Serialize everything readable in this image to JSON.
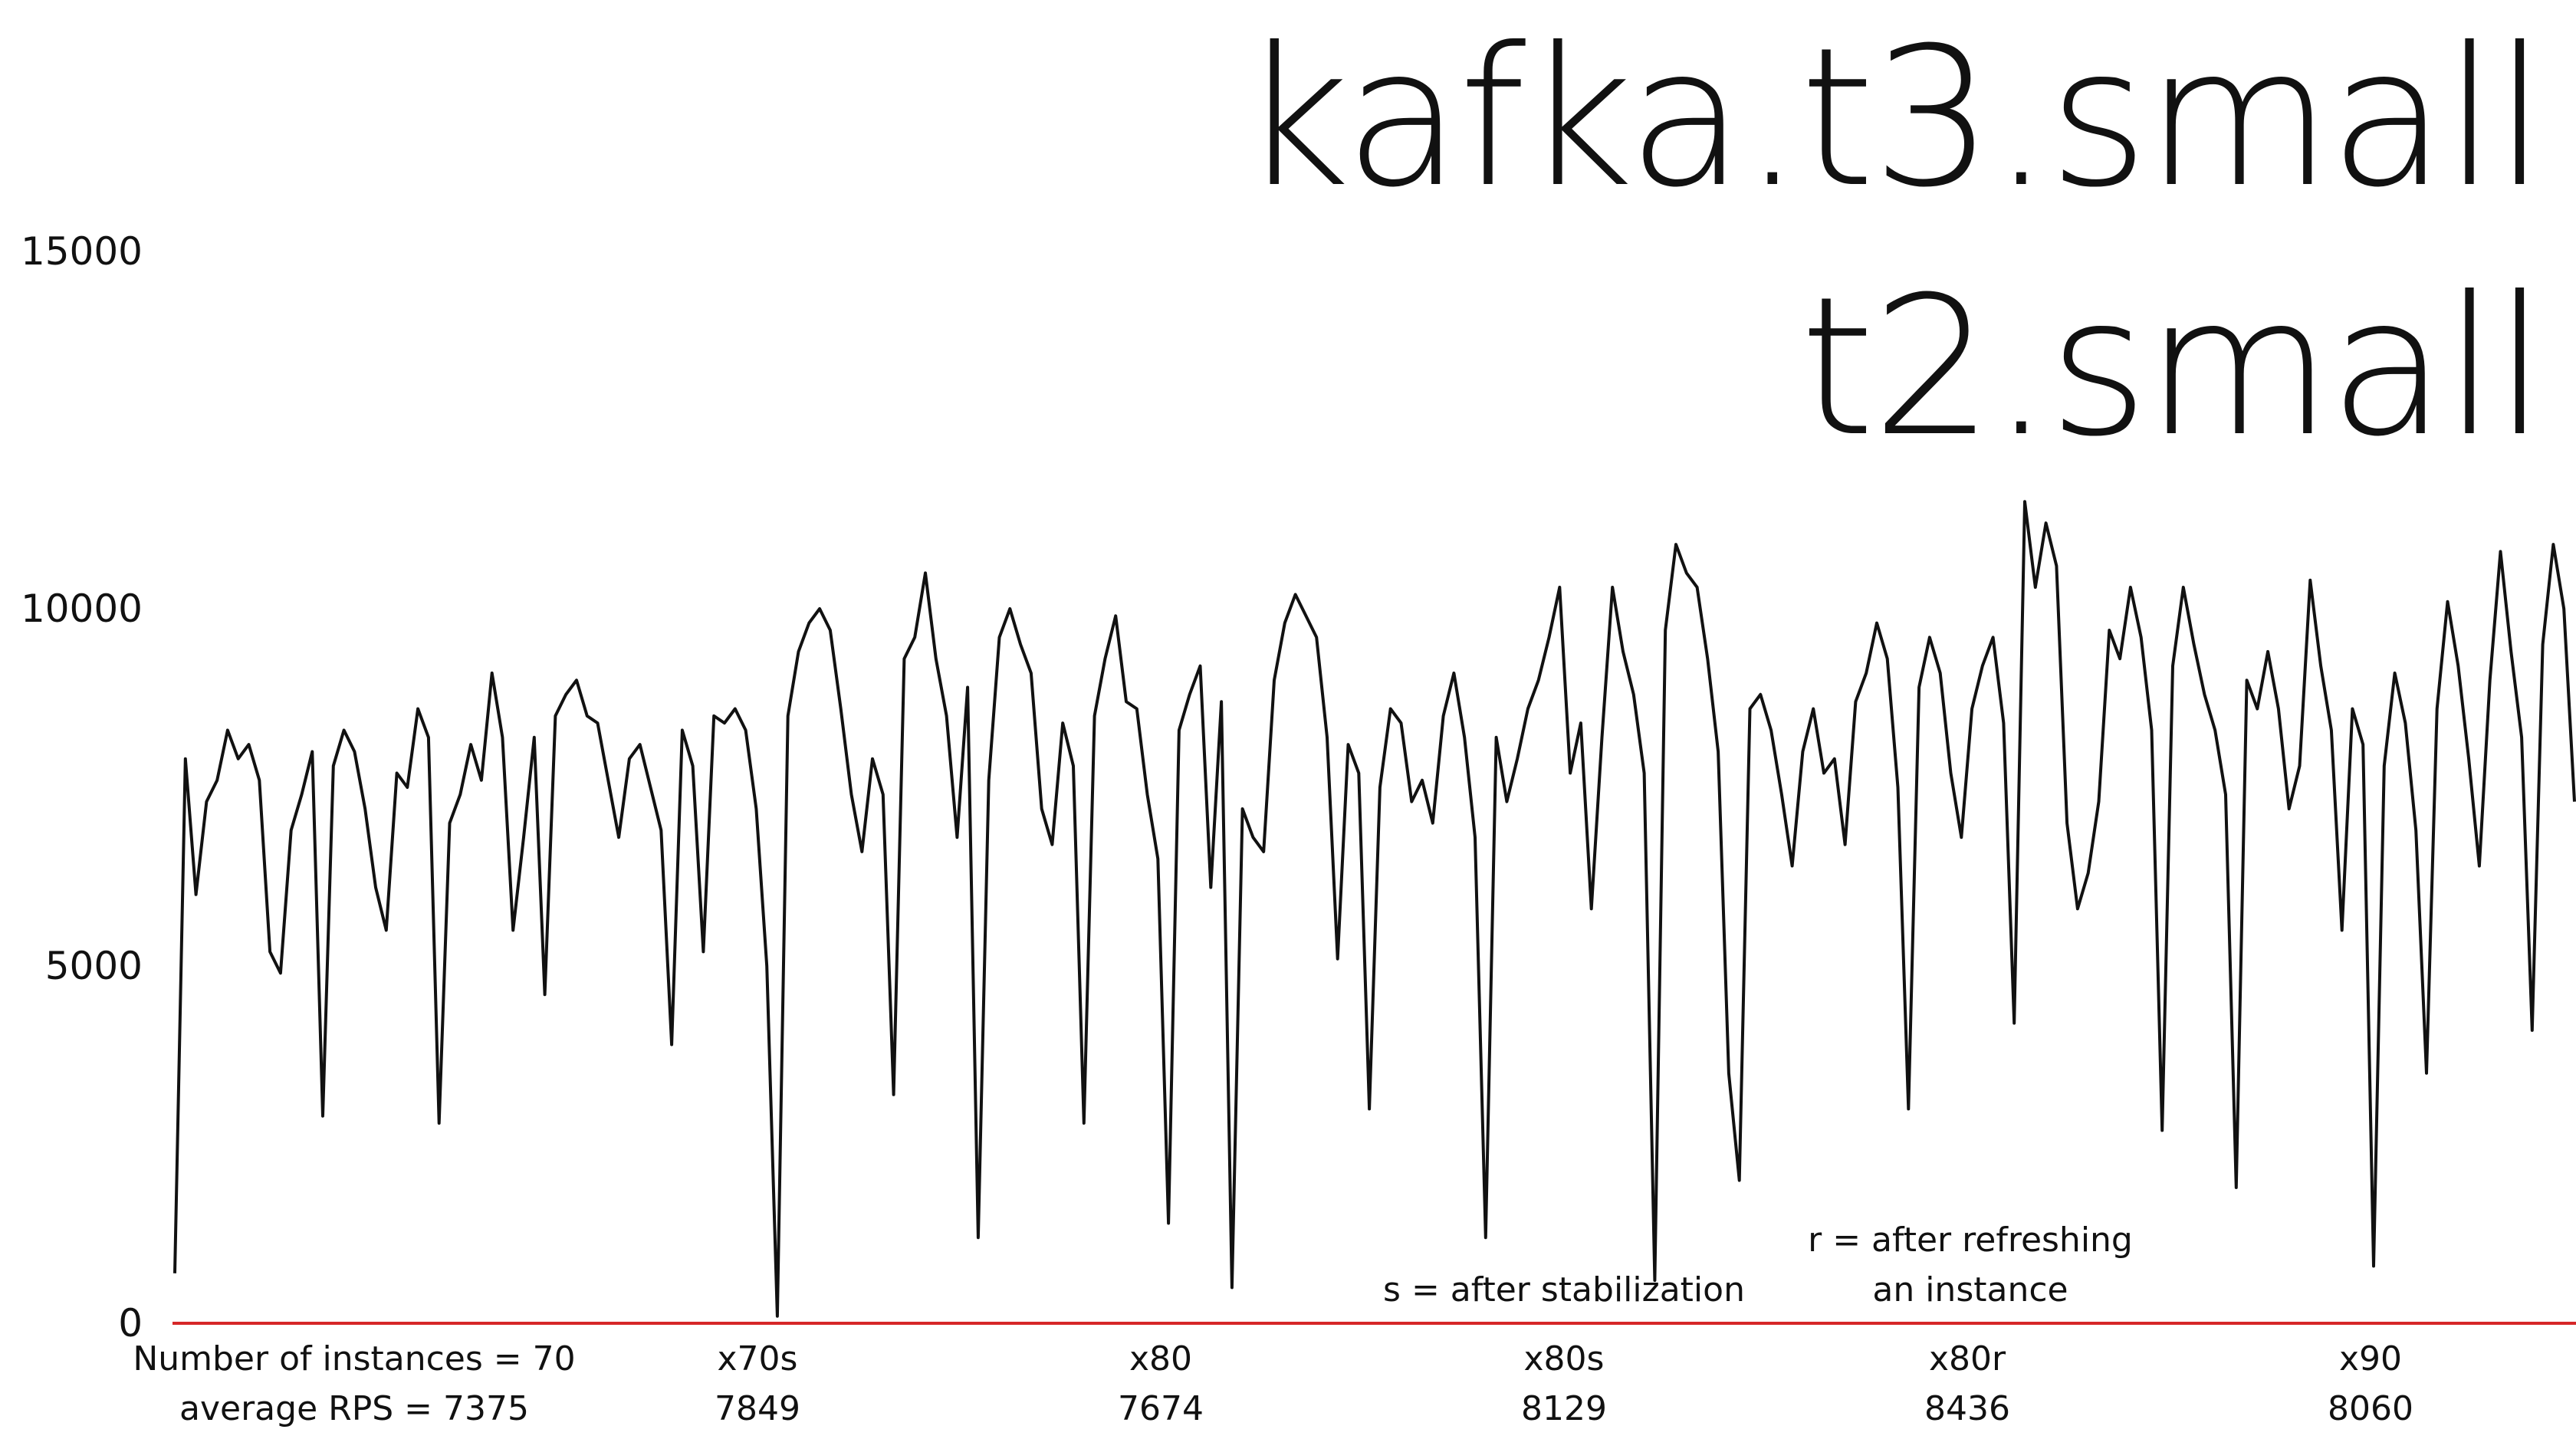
{
  "chart_data": {
    "type": "line",
    "title": "kafka.t3.small",
    "subtitle": "t2.small",
    "ylim": [
      0,
      17500
    ],
    "yticks": [
      0,
      5000,
      10000,
      15000
    ],
    "grid": false,
    "series": [
      {
        "values": [
          700,
          7900,
          6000,
          7300,
          7600,
          8300,
          7900,
          8100,
          7600,
          5200,
          4900,
          6900,
          7400,
          8000,
          2900,
          7800,
          8300,
          8000,
          7200,
          6100,
          5500,
          7700,
          7500,
          8600,
          8200,
          2800,
          7000,
          7400,
          8100,
          7600,
          9100,
          8200,
          5500,
          6800,
          8200,
          4600,
          8500,
          8800,
          9000,
          8500,
          8400,
          7600,
          6800,
          7900,
          8100,
          7500,
          6900,
          3900,
          8300,
          7800,
          5200,
          8500,
          8400,
          8600,
          8300,
          7200,
          5000,
          100,
          8500,
          9400,
          9800,
          10000,
          9700,
          8600,
          7400,
          6600,
          7900,
          7400,
          3200,
          9300,
          9600,
          10500,
          9300,
          8500,
          6800,
          8900,
          1200,
          7600,
          9600,
          10000,
          9500,
          9100,
          7200,
          6700,
          8400,
          7800,
          2800,
          8500,
          9300,
          9900,
          8700,
          8600,
          7400,
          6500,
          1400,
          8300,
          8800,
          9200,
          6100,
          8700,
          500,
          7200,
          6800,
          6600,
          9000,
          9800,
          10200,
          9900,
          9600,
          8200,
          5100,
          8100,
          7700,
          3000,
          7500,
          8600,
          8400,
          7300,
          7600,
          7000,
          8500,
          9100,
          8200,
          6800,
          1200,
          8200,
          7300,
          7900,
          8600,
          9000,
          9600,
          10300,
          7700,
          8400,
          5800,
          8200,
          10300,
          9400,
          8800,
          7700,
          600,
          9700,
          10900,
          10500,
          10300,
          9300,
          8000,
          3500,
          2000,
          8600,
          8800,
          8300,
          7400,
          6400,
          8000,
          8600,
          7700,
          7900,
          6700,
          8700,
          9100,
          9800,
          9300,
          7500,
          3000,
          8900,
          9600,
          9100,
          7700,
          6800,
          8600,
          9200,
          9600,
          8400,
          4200,
          11500,
          10300,
          11200,
          10600,
          7000,
          5800,
          6300,
          7300,
          9700,
          9300,
          10300,
          9600,
          8300,
          2700,
          9200,
          10300,
          9500,
          8800,
          8300,
          7400,
          1900,
          9000,
          8600,
          9400,
          8600,
          7200,
          7800,
          10400,
          9200,
          8300,
          5500,
          8600,
          8100,
          800,
          7800,
          9100,
          8400,
          6900,
          3500,
          8600,
          10100,
          9200,
          7900,
          6400,
          9000,
          10800,
          9400,
          8200,
          4100,
          9500,
          10900,
          10000,
          7300
        ]
      }
    ],
    "segments": [
      {
        "label": "Number of instances = 70",
        "rps_label": "average RPS = 7375"
      },
      {
        "label": "x70s",
        "rps_label": "7849"
      },
      {
        "label": "x80",
        "rps_label": "7674"
      },
      {
        "label": "x80s",
        "rps_label": "8129"
      },
      {
        "label": "x80r",
        "rps_label": "8436"
      },
      {
        "label": "x90",
        "rps_label": "8060"
      }
    ],
    "annotations": [
      "s = after stabilization",
      "r = after refreshing",
      "an instance"
    ],
    "colors": {
      "line": "#111111",
      "baseline": "#d62728"
    }
  }
}
